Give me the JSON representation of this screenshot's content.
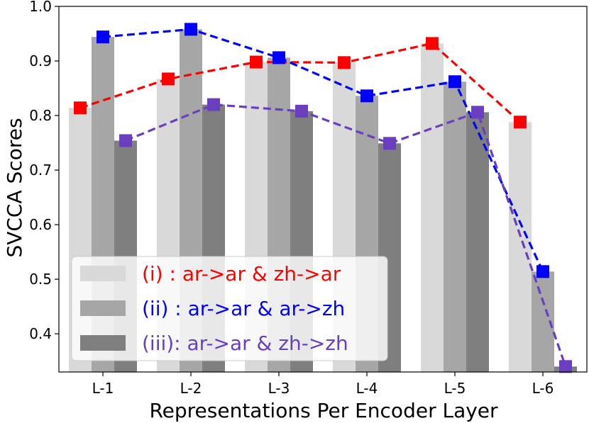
{
  "chart_data": {
    "type": "bar",
    "xlabel": "Representations Per Encoder Layer",
    "ylabel": "SVCCA Scores",
    "ylim": [
      0.33,
      1.0
    ],
    "yticks": [
      "0.4",
      "0.5",
      "0.6",
      "0.7",
      "0.8",
      "0.9",
      "1.0"
    ],
    "categories": [
      "L-1",
      "L-2",
      "L-3",
      "L-4",
      "L-5",
      "L-6"
    ],
    "legend_position": "lower-left",
    "series": [
      {
        "name": "(i)  : ar->ar & zh->ar",
        "bar_color": "#d9d9d9",
        "line_color": "#ff0000",
        "values": [
          0.814,
          0.867,
          0.898,
          0.897,
          0.932,
          0.788
        ]
      },
      {
        "name": "(ii) : ar->ar & ar->zh",
        "bar_color": "#a6a6a6",
        "line_color": "#0000ff",
        "values": [
          0.944,
          0.958,
          0.906,
          0.836,
          0.862,
          0.514
        ]
      },
      {
        "name": "(iii): ar->ar & zh->zh",
        "bar_color": "#7f7f7f",
        "line_color": "#6a3fbf",
        "values": [
          0.754,
          0.82,
          0.808,
          0.749,
          0.806,
          0.34
        ]
      }
    ]
  }
}
